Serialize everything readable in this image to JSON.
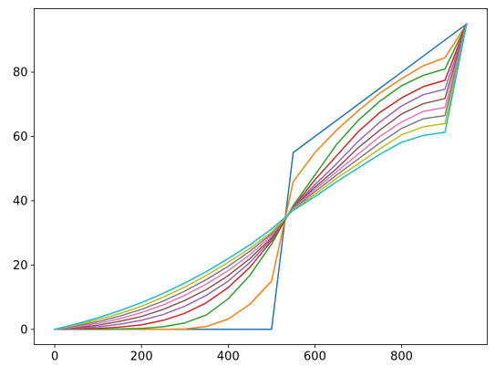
{
  "chart_data": {
    "type": "line",
    "title": "",
    "xlabel": "",
    "ylabel": "",
    "xlim": [
      -47.5,
      997.5
    ],
    "ylim": [
      -4.75,
      99.75
    ],
    "x": [
      0,
      50,
      100,
      150,
      200,
      250,
      300,
      350,
      400,
      450,
      500,
      550,
      600,
      650,
      700,
      750,
      800,
      850,
      900,
      950
    ],
    "xticks": [
      0,
      200,
      400,
      600,
      800
    ],
    "yticks": [
      0,
      20,
      40,
      60,
      80
    ],
    "xtick_labels": [
      "0",
      "200",
      "400",
      "600",
      "800"
    ],
    "ytick_labels": [
      "0",
      "20",
      "40",
      "60",
      "80"
    ],
    "grid": false,
    "legend": "none",
    "series": [
      {
        "color": "#1f77b4",
        "values": [
          0,
          0,
          0,
          0,
          0,
          0,
          0,
          0,
          0,
          0,
          0,
          55,
          60,
          65,
          70,
          75,
          80,
          85,
          90,
          95
        ]
      },
      {
        "color": "#ff7f0e",
        "values": [
          0,
          0,
          0,
          0,
          0,
          0,
          0.1,
          0.9,
          3.2,
          7.8,
          15.0,
          46.0,
          55.0,
          62.0,
          68.0,
          73.5,
          78.0,
          82.0,
          84.5,
          95
        ]
      },
      {
        "color": "#2ca02c",
        "values": [
          0,
          0,
          0,
          0.1,
          0.3,
          0.8,
          2.0,
          4.5,
          9.5,
          16.8,
          26.5,
          38.5,
          48.0,
          57.5,
          65.0,
          71.0,
          75.8,
          79.0,
          81.0,
          95
        ]
      },
      {
        "color": "#d62728",
        "values": [
          0,
          0.1,
          0.3,
          0.7,
          1.4,
          2.8,
          5.0,
          8.3,
          13.0,
          19.3,
          27.5,
          38.0,
          46.5,
          54.0,
          61.5,
          67.5,
          72.0,
          75.5,
          77.5,
          95
        ]
      },
      {
        "color": "#9467bd",
        "values": [
          0,
          0.3,
          0.8,
          1.6,
          2.8,
          4.6,
          7.2,
          10.6,
          15.0,
          20.8,
          28.0,
          38.0,
          45.0,
          51.5,
          58.5,
          64.5,
          69.5,
          73.0,
          74.7,
          95
        ]
      },
      {
        "color": "#8c564b",
        "values": [
          0,
          0.5,
          1.3,
          2.5,
          4.0,
          6.2,
          9.0,
          12.4,
          16.7,
          22.0,
          28.5,
          37.8,
          44.2,
          50.0,
          56.5,
          62.0,
          67.0,
          70.2,
          71.8,
          95
        ]
      },
      {
        "color": "#e377c2",
        "values": [
          0,
          0.8,
          1.9,
          3.3,
          5.2,
          7.6,
          10.6,
          14.1,
          18.3,
          23.2,
          29.2,
          37.6,
          43.5,
          49.0,
          54.5,
          60.0,
          64.5,
          67.8,
          69.0,
          95
        ]
      },
      {
        "color": "#7f7f7f",
        "values": [
          0,
          1.1,
          2.4,
          4.1,
          6.2,
          8.8,
          11.9,
          15.5,
          19.6,
          24.3,
          29.7,
          37.4,
          42.8,
          48.0,
          53.0,
          58.0,
          62.5,
          65.5,
          66.5,
          95
        ]
      },
      {
        "color": "#bcbd22",
        "values": [
          0,
          1.4,
          3.0,
          4.9,
          7.2,
          10.0,
          13.2,
          16.8,
          20.8,
          25.2,
          30.2,
          37.2,
          42.0,
          47.0,
          51.5,
          56.2,
          60.5,
          63.0,
          64.0,
          95
        ]
      },
      {
        "color": "#17becf",
        "values": [
          0,
          1.7,
          3.6,
          5.8,
          8.3,
          11.2,
          14.4,
          18.0,
          22.0,
          26.3,
          31.2,
          37.0,
          41.3,
          45.9,
          50.2,
          54.5,
          58.2,
          60.3,
          61.3,
          95
        ]
      }
    ]
  }
}
